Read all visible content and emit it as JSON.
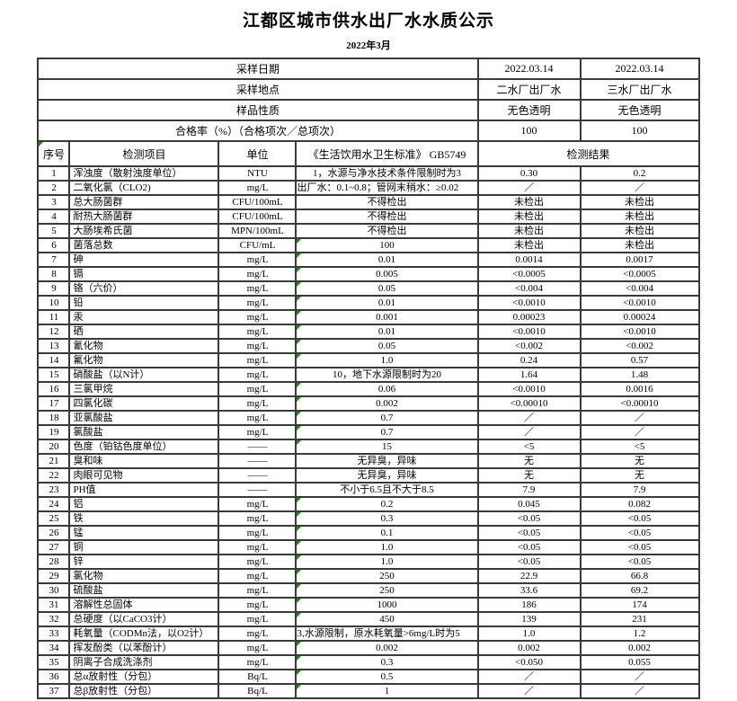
{
  "page": {
    "title": "江都区城市供水出厂水水质公示",
    "subtitle": "2022年3月"
  },
  "colors": {
    "border": "#3a3a3a",
    "flag_green": "#149114",
    "text": "#000000",
    "background": "#ffffff"
  },
  "icons": {
    "flag": "number-stored-as-text-flag-icon"
  },
  "info_rows": [
    {
      "label": "采样日期",
      "plant2": "2022.03.14",
      "plant3": "2022.03.14"
    },
    {
      "label": "采样地点",
      "plant2": "二水厂出厂水",
      "plant3": "三水厂出厂水"
    },
    {
      "label": "样品性质",
      "plant2": "无色透明",
      "plant3": "无色透明"
    },
    {
      "label": "合格率（%）（合格项次／总项次）",
      "plant2": "100",
      "plant3": "100"
    }
  ],
  "header": {
    "no": "序号",
    "item": "检测项目",
    "unit": "单位",
    "standard": "《生活饮用水卫生标准》 GB5749",
    "result": "检测结果"
  },
  "rows": [
    {
      "no": "1",
      "item": "浑浊度（散射浊度单位）",
      "unit": "NTU",
      "std": "1，水源与净水技术条件限制时为3",
      "r2": "0.30",
      "r3": "0.2",
      "flag": false,
      "stdLeft": false
    },
    {
      "no": "2",
      "item": "二氧化氯（CLO2)",
      "unit": "mg/L",
      "std": "出厂水：0.1~0.8；管网末稍水：≥0.02",
      "r2": "／",
      "r3": "／",
      "flag": false,
      "stdLeft": true
    },
    {
      "no": "3",
      "item": "总大肠菌群",
      "unit": "CFU/100mL",
      "std": "不得检出",
      "r2": "未检出",
      "r3": "未检出",
      "flag": false,
      "stdLeft": false
    },
    {
      "no": "4",
      "item": "耐热大肠菌群",
      "unit": "CFU/100mL",
      "std": "不得检出",
      "r2": "未检出",
      "r3": "未检出",
      "flag": false,
      "stdLeft": false
    },
    {
      "no": "5",
      "item": "大肠埃希氏菌",
      "unit": "MPN/100mL",
      "std": "不得检出",
      "r2": "未检出",
      "r3": "未检出",
      "flag": false,
      "stdLeft": false
    },
    {
      "no": "6",
      "item": "菌落总数",
      "unit": "CFU/mL",
      "std": "100",
      "r2": "未检出",
      "r3": "未检出",
      "flag": true,
      "stdLeft": false
    },
    {
      "no": "7",
      "item": "砷",
      "unit": "mg/L",
      "std": "0.01",
      "r2": "0.0014",
      "r3": "0.0017",
      "flag": true,
      "stdLeft": false
    },
    {
      "no": "8",
      "item": "镉",
      "unit": "mg/L",
      "std": "0.005",
      "r2": "<0.0005",
      "r3": "<0.0005",
      "flag": true,
      "stdLeft": false
    },
    {
      "no": "9",
      "item": "铬（六价）",
      "unit": "mg/L",
      "std": "0.05",
      "r2": "<0.004",
      "r3": "<0.004",
      "flag": true,
      "stdLeft": false
    },
    {
      "no": "10",
      "item": "铅",
      "unit": "mg/L",
      "std": "0.01",
      "r2": "<0.0010",
      "r3": "<0.0010",
      "flag": true,
      "stdLeft": false
    },
    {
      "no": "11",
      "item": "汞",
      "unit": "mg/L",
      "std": "0.001",
      "r2": "0.00023",
      "r3": "0.00024",
      "flag": true,
      "stdLeft": false
    },
    {
      "no": "12",
      "item": "硒",
      "unit": "mg/L",
      "std": "0.01",
      "r2": "<0.0010",
      "r3": "<0.0010",
      "flag": true,
      "stdLeft": false
    },
    {
      "no": "13",
      "item": "氰化物",
      "unit": "mg/L",
      "std": "0.05",
      "r2": "<0.002",
      "r3": "<0.002",
      "flag": true,
      "stdLeft": false
    },
    {
      "no": "14",
      "item": "氟化物",
      "unit": "mg/L",
      "std": "1.0",
      "r2": "0.24",
      "r3": "0.57",
      "flag": true,
      "stdLeft": false
    },
    {
      "no": "15",
      "item": "硝酸盐（以N计）",
      "unit": "mg/L",
      "std": "10，地下水源限制时为20",
      "r2": "1.64",
      "r3": "1.48",
      "flag": false,
      "stdLeft": false
    },
    {
      "no": "16",
      "item": "三氯甲烷",
      "unit": "mg/L",
      "std": "0.06",
      "r2": "<0.0010",
      "r3": "0.0016",
      "flag": true,
      "stdLeft": false
    },
    {
      "no": "17",
      "item": "四氯化碳",
      "unit": "mg/L",
      "std": "0.002",
      "r2": "<0.00010",
      "r3": "<0.00010",
      "flag": true,
      "stdLeft": false
    },
    {
      "no": "18",
      "item": "亚氯酸盐",
      "unit": "mg/L",
      "std": "0.7",
      "r2": "／",
      "r3": "／",
      "flag": true,
      "stdLeft": false
    },
    {
      "no": "19",
      "item": "氯酸盐",
      "unit": "mg/L",
      "std": "0.7",
      "r2": "／",
      "r3": "／",
      "flag": true,
      "stdLeft": false
    },
    {
      "no": "20",
      "item": "色度（铂钴色度单位）",
      "unit": "——",
      "std": "15",
      "r2": "<5",
      "r3": "<5",
      "flag": true,
      "stdLeft": false
    },
    {
      "no": "21",
      "item": "臭和味",
      "unit": "——",
      "std": "无异臭，异味",
      "r2": "无",
      "r3": "无",
      "flag": false,
      "stdLeft": false
    },
    {
      "no": "22",
      "item": "肉眼可见物",
      "unit": "——",
      "std": "无异臭，异味",
      "r2": "无",
      "r3": "无",
      "flag": false,
      "stdLeft": false
    },
    {
      "no": "23",
      "item": "PH值",
      "unit": "——",
      "std": "不小于6.5且不大于8.5",
      "r2": "7.9",
      "r3": "7.9",
      "flag": false,
      "stdLeft": false
    },
    {
      "no": "24",
      "item": "铝",
      "unit": "mg/L",
      "std": "0.2",
      "r2": "0.045",
      "r3": "0.082",
      "flag": true,
      "stdLeft": false
    },
    {
      "no": "25",
      "item": "铁",
      "unit": "mg/L",
      "std": "0.3",
      "r2": "<0.05",
      "r3": "<0.05",
      "flag": true,
      "stdLeft": false
    },
    {
      "no": "26",
      "item": "锰",
      "unit": "mg/L",
      "std": "0.1",
      "r2": "<0.05",
      "r3": "<0.05",
      "flag": true,
      "stdLeft": false
    },
    {
      "no": "27",
      "item": "铜",
      "unit": "mg/L",
      "std": "1.0",
      "r2": "<0.05",
      "r3": "<0.05",
      "flag": true,
      "stdLeft": false
    },
    {
      "no": "28",
      "item": "锌",
      "unit": "mg/L",
      "std": "1.0",
      "r2": "<0.05",
      "r3": "<0.05",
      "flag": true,
      "stdLeft": false
    },
    {
      "no": "29",
      "item": "氯化物",
      "unit": "mg/L",
      "std": "250",
      "r2": "22.9",
      "r3": "66.8",
      "flag": true,
      "stdLeft": false
    },
    {
      "no": "30",
      "item": "硫酸盐",
      "unit": "mg/L",
      "std": "250",
      "r2": "33.6",
      "r3": "69.2",
      "flag": true,
      "stdLeft": false
    },
    {
      "no": "31",
      "item": "溶解性总固体",
      "unit": "mg/L",
      "std": "1000",
      "r2": "186",
      "r3": "174",
      "flag": true,
      "stdLeft": false
    },
    {
      "no": "32",
      "item": "总硬度（以CaCO3计）",
      "unit": "mg/L",
      "std": "450",
      "r2": "139",
      "r3": "231",
      "flag": true,
      "stdLeft": false
    },
    {
      "no": "33",
      "item": "耗氧量（CODMn法，以O2计）",
      "unit": "mg/L",
      "std": "3,水源限制，原水耗氧量>6mg/L时为5",
      "r2": "1.0",
      "r3": "1.2",
      "flag": false,
      "stdLeft": true
    },
    {
      "no": "34",
      "item": "挥发酚类（以苯酚计）",
      "unit": "mg/L",
      "std": "0.002",
      "r2": "0.002",
      "r3": "0.002",
      "flag": true,
      "stdLeft": false
    },
    {
      "no": "35",
      "item": "阴离子合成洗涤剂",
      "unit": "mg/L",
      "std": "0.3",
      "r2": "<0.050",
      "r3": "0.055",
      "flag": true,
      "stdLeft": false
    },
    {
      "no": "36",
      "item": "总α放射性（分包）",
      "unit": "Bq/L",
      "std": "0.5",
      "r2": "／",
      "r3": "／",
      "flag": true,
      "stdLeft": false
    },
    {
      "no": "37",
      "item": "总β放射性（分包）",
      "unit": "Bq/L",
      "std": "1",
      "r2": "／",
      "r3": "／",
      "flag": true,
      "stdLeft": false
    }
  ]
}
